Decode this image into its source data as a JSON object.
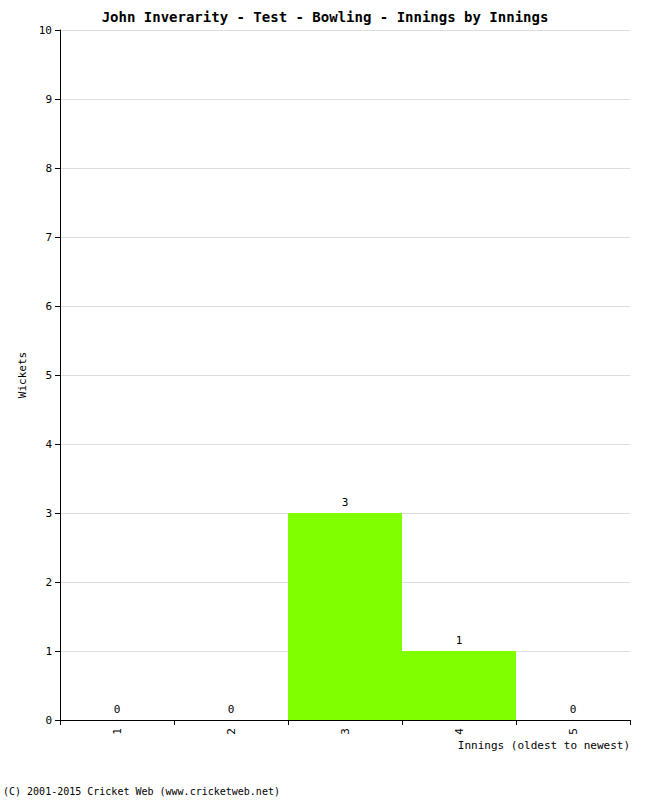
{
  "chart_data": {
    "type": "bar",
    "title": "John Inverarity - Test - Bowling - Innings by Innings",
    "x_label": "Innings (oldest to newest)",
    "y_label": "Wickets",
    "annotation": "(C) 2001-2015 Cricket Web (www.cricketweb.net)",
    "categories": [
      "1",
      "2",
      "3",
      "4",
      "5"
    ],
    "values": [
      0,
      0,
      3,
      1,
      0
    ],
    "color": "#80ff00",
    "ylim": [
      0,
      10
    ],
    "yticks": [
      0,
      1,
      2,
      3,
      4,
      5,
      6,
      7,
      8,
      9,
      10
    ],
    "grid": true,
    "data_labels": true
  }
}
